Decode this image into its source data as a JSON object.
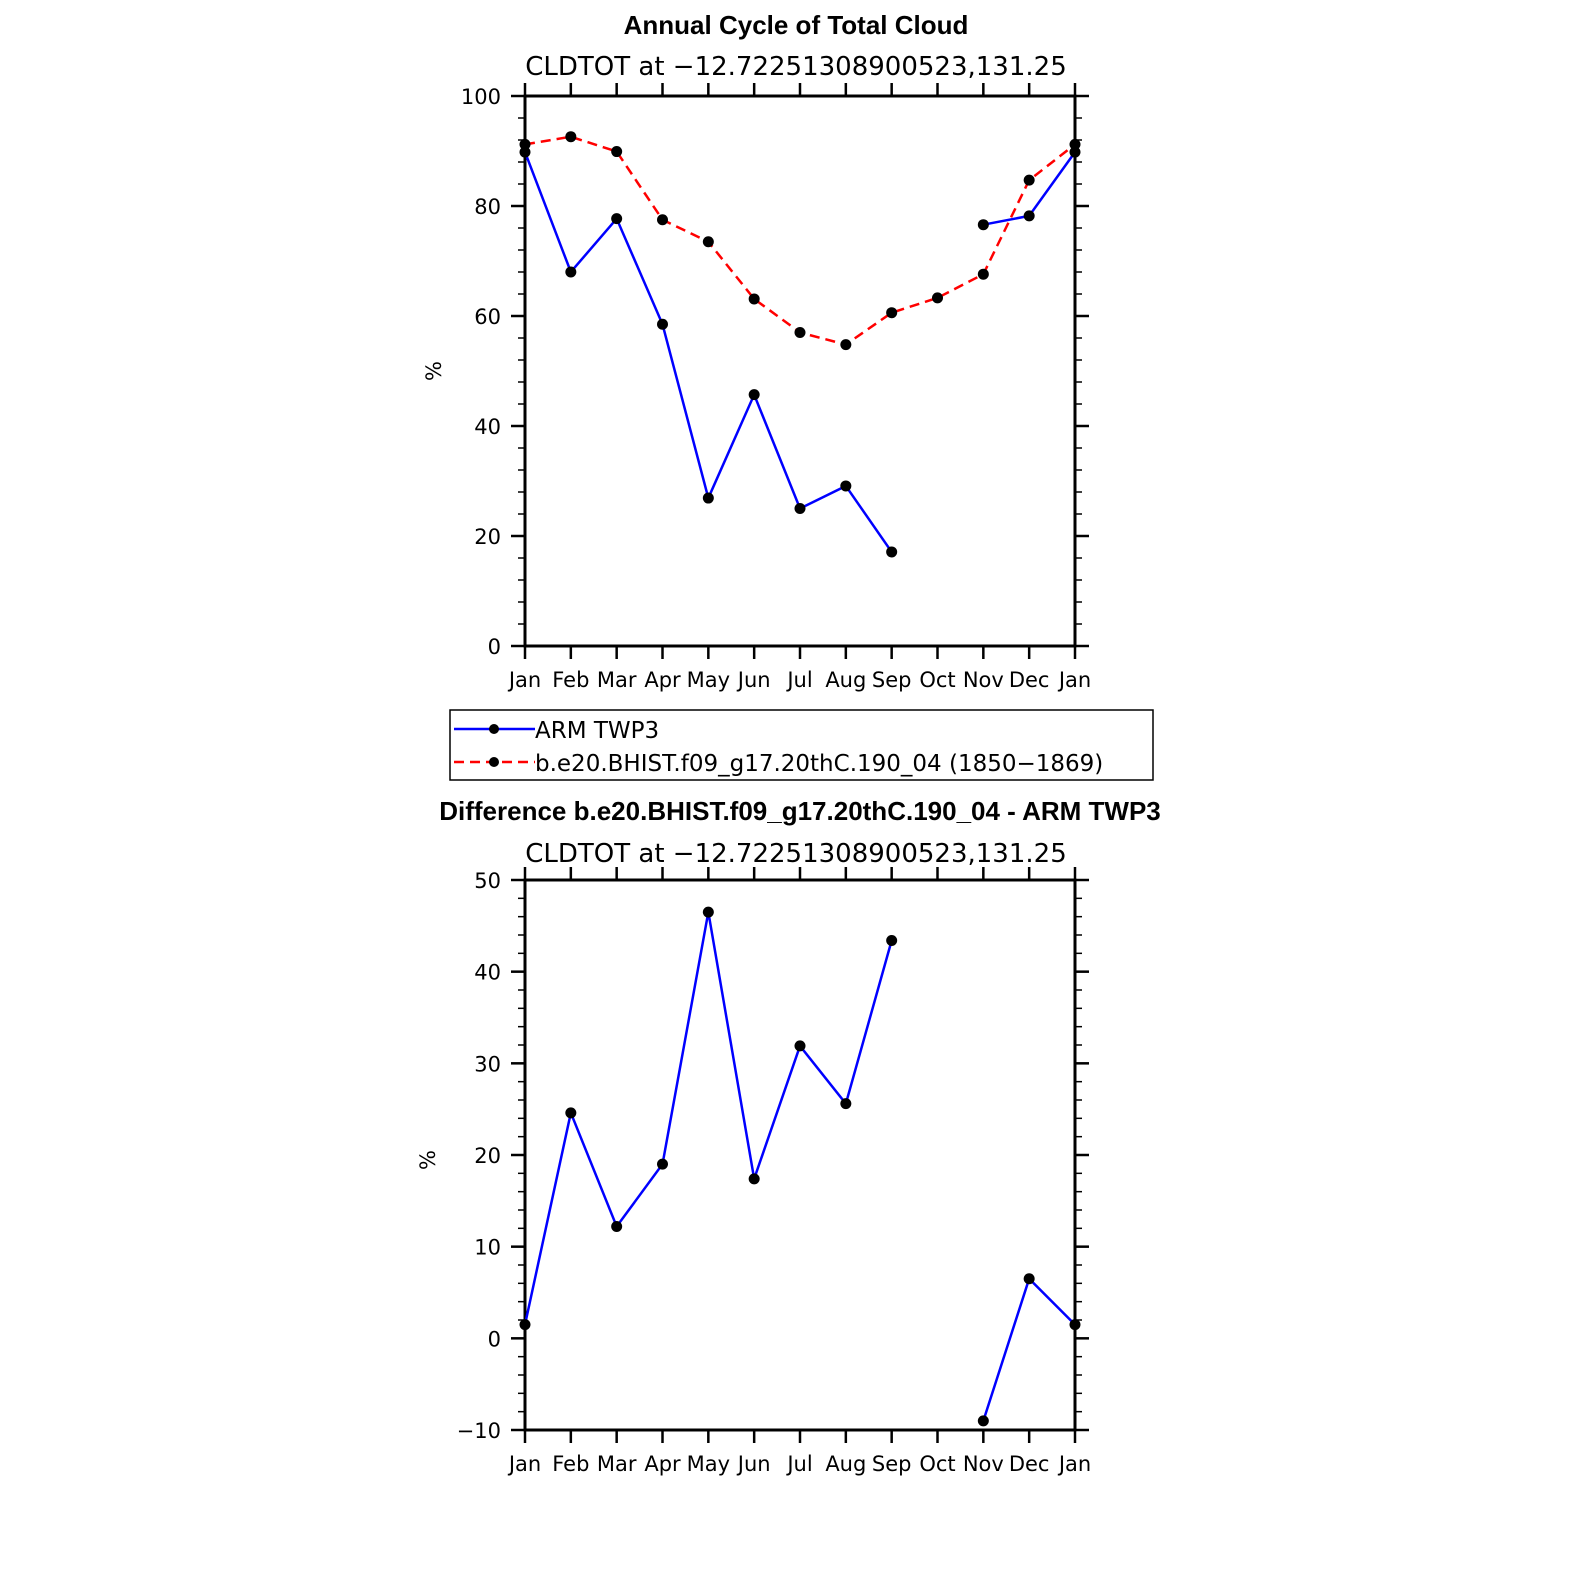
{
  "chart_data": [
    {
      "type": "line",
      "title": "Annual Cycle of Total Cloud",
      "subtitle": "CLDTOT at −12.72251308900523,131.25",
      "xlabel": "",
      "ylabel": "%",
      "categories": [
        "Jan",
        "Feb",
        "Mar",
        "Apr",
        "May",
        "Jun",
        "Jul",
        "Aug",
        "Sep",
        "Oct",
        "Nov",
        "Dec",
        "Jan"
      ],
      "ylim": [
        0,
        100
      ],
      "yticks": [
        "0",
        "20",
        "40",
        "60",
        "80",
        "100"
      ],
      "ytick_values": [
        0,
        20,
        40,
        60,
        80,
        100
      ],
      "series": [
        {
          "name": "ARM TWP3",
          "color": "#0000ff",
          "style": "solid",
          "values": [
            89.8,
            68.0,
            77.7,
            58.5,
            26.9,
            45.7,
            25.0,
            29.1,
            17.1,
            null,
            76.6,
            78.2,
            89.8
          ]
        },
        {
          "name": "b.e20.BHIST.f09_g17.20thC.190_04 (1850−1869)",
          "color": "#ff0000",
          "style": "dashed",
          "values": [
            91.2,
            92.6,
            89.9,
            77.5,
            73.5,
            63.1,
            57.0,
            54.8,
            60.6,
            63.3,
            67.6,
            84.7,
            91.2
          ]
        }
      ],
      "legend": [
        "ARM TWP3",
        "b.e20.BHIST.f09_g17.20thC.190_04 (1850−1869)"
      ]
    },
    {
      "type": "line",
      "title": "Difference b.e20.BHIST.f09_g17.20thC.190_04 - ARM TWP3",
      "subtitle": "CLDTOT at −12.72251308900523,131.25",
      "xlabel": "",
      "ylabel": "%",
      "categories": [
        "Jan",
        "Feb",
        "Mar",
        "Apr",
        "May",
        "Jun",
        "Jul",
        "Aug",
        "Sep",
        "Oct",
        "Nov",
        "Dec",
        "Jan"
      ],
      "ylim": [
        -10,
        50
      ],
      "yticks": [
        "−10",
        "0",
        "10",
        "20",
        "30",
        "40",
        "50"
      ],
      "ytick_values": [
        -10,
        0,
        10,
        20,
        30,
        40,
        50
      ],
      "series": [
        {
          "name": "Difference",
          "color": "#0000ff",
          "style": "solid",
          "values": [
            1.5,
            24.6,
            12.2,
            19.0,
            46.5,
            17.4,
            31.9,
            25.6,
            43.4,
            null,
            -9.0,
            6.5,
            1.5
          ]
        }
      ]
    }
  ]
}
